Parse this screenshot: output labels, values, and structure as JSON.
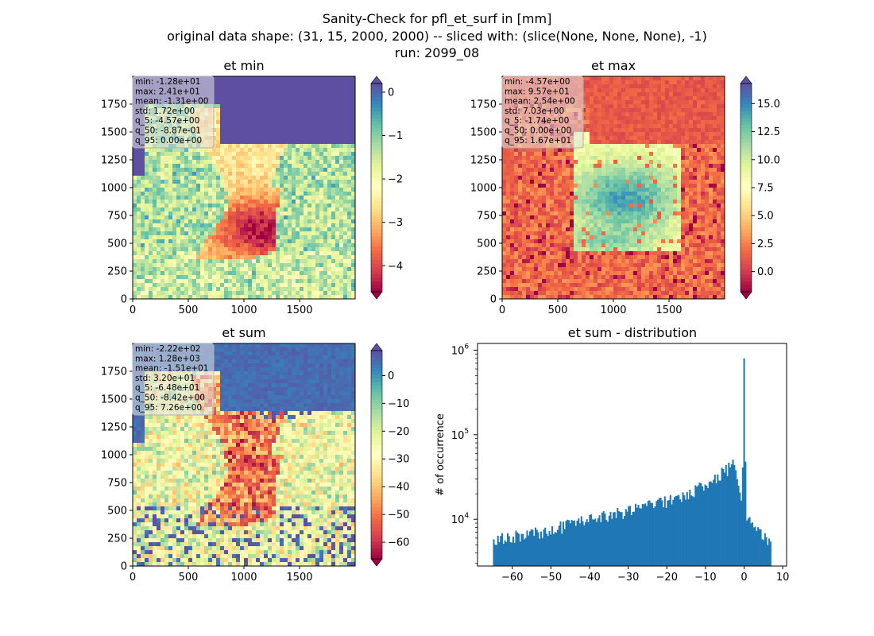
{
  "figure": {
    "title_lines": [
      "Sanity-Check for pfl_et_surf in [mm]",
      "original data shape: (31, 15, 2000, 2000) -- sliced with: (slice(None, None, None), -1)",
      "run: 2099_08"
    ]
  },
  "chart_data": [
    {
      "type": "heatmap",
      "title": "et min",
      "x_ticks": [
        "0",
        "500",
        "1000",
        "1500"
      ],
      "y_ticks": [
        "0",
        "250",
        "500",
        "750",
        "1000",
        "1250",
        "1500",
        "1750"
      ],
      "x_range": [
        0,
        2000
      ],
      "y_range": [
        0,
        2000
      ],
      "colormap": "Spectral",
      "colorbar": {
        "range": [
          -4.6,
          0.2
        ],
        "ticks": [
          "0",
          "−1",
          "−2",
          "−3",
          "−4"
        ],
        "tick_values": [
          0,
          -1,
          -2,
          -3,
          -4
        ],
        "extend": "both"
      },
      "stats": [
        "min: -1.28e+01",
        "max: 2.41e+01",
        "mean: -1.31e+00",
        "std: 1.72e+00",
        "q_5: -4.57e+00",
        "q_50: -8.87e-01",
        "q_95: 0.00e+00"
      ]
    },
    {
      "type": "heatmap",
      "title": "et max",
      "x_ticks": [
        "0",
        "500",
        "1000",
        "1500"
      ],
      "y_ticks": [
        "0",
        "250",
        "500",
        "750",
        "1000",
        "1250",
        "1500",
        "1750"
      ],
      "x_range": [
        0,
        2000
      ],
      "y_range": [
        0,
        2000
      ],
      "colormap": "Spectral",
      "colorbar": {
        "range": [
          -1.8,
          16.8
        ],
        "ticks": [
          "15.0",
          "12.5",
          "10.0",
          "7.5",
          "5.0",
          "2.5",
          "0.0"
        ],
        "tick_values": [
          15,
          12.5,
          10,
          7.5,
          5,
          2.5,
          0
        ],
        "extend": "both"
      },
      "stats": [
        "min: -4.57e+00",
        "max: 9.57e+01",
        "mean: 2.54e+00",
        "std: 7.03e+00",
        "q_5: -1.74e+00",
        "q_50: 0.00e+00",
        "q_95: 1.67e+01"
      ]
    },
    {
      "type": "heatmap",
      "title": "et sum",
      "x_ticks": [
        "0",
        "500",
        "1000",
        "1500"
      ],
      "y_ticks": [
        "0",
        "250",
        "500",
        "750",
        "1000",
        "1250",
        "1500",
        "1750"
      ],
      "x_range": [
        0,
        2000
      ],
      "y_range": [
        0,
        2000
      ],
      "colormap": "Spectral",
      "colorbar": {
        "range": [
          -66,
          9
        ],
        "ticks": [
          "0",
          "−10",
          "−20",
          "−30",
          "−40",
          "−50",
          "−60"
        ],
        "tick_values": [
          0,
          -10,
          -20,
          -30,
          -40,
          -50,
          -60
        ],
        "extend": "both"
      },
      "stats": [
        "min: -2.22e+02",
        "max: 1.28e+03",
        "mean: -1.51e+01",
        "std: 3.20e+01",
        "q_5: -6.48e+01",
        "q_50: -8.42e+00",
        "q_95: 7.26e+00"
      ]
    },
    {
      "type": "bar",
      "title": "et sum - distribution",
      "ylabel": "# of occurrence",
      "xlabel": "",
      "yscale": "log",
      "x_ticks": [
        "−60",
        "−50",
        "−40",
        "−30",
        "−20",
        "−10",
        "0",
        "10"
      ],
      "x_tick_values": [
        -60,
        -50,
        -40,
        -30,
        -20,
        -10,
        0,
        10
      ],
      "y_ticks": [
        "10^4",
        "10^5",
        "10^6"
      ],
      "xlim": [
        -69,
        11
      ],
      "ylim": [
        2800,
        1200000
      ],
      "bar_color": "#1f77b4",
      "bins": [
        -65,
        7
      ],
      "anchors": [
        [
          -65,
          5800
        ],
        [
          -62,
          6200
        ],
        [
          -60,
          6300
        ],
        [
          -55,
          6800
        ],
        [
          -50,
          7600
        ],
        [
          -45,
          8600
        ],
        [
          -40,
          9800
        ],
        [
          -35,
          11000
        ],
        [
          -30,
          12500
        ],
        [
          -25,
          14500
        ],
        [
          -20,
          16500
        ],
        [
          -15,
          20000
        ],
        [
          -10,
          25500
        ],
        [
          -6,
          34000
        ],
        [
          -4,
          40000
        ],
        [
          -2.5,
          45000
        ],
        [
          -1.5,
          30000
        ],
        [
          -0.5,
          14000
        ],
        [
          0,
          800000
        ],
        [
          0.5,
          10500
        ],
        [
          1.5,
          9000
        ],
        [
          3,
          7500
        ],
        [
          5,
          6200
        ],
        [
          7,
          4800
        ]
      ]
    }
  ]
}
